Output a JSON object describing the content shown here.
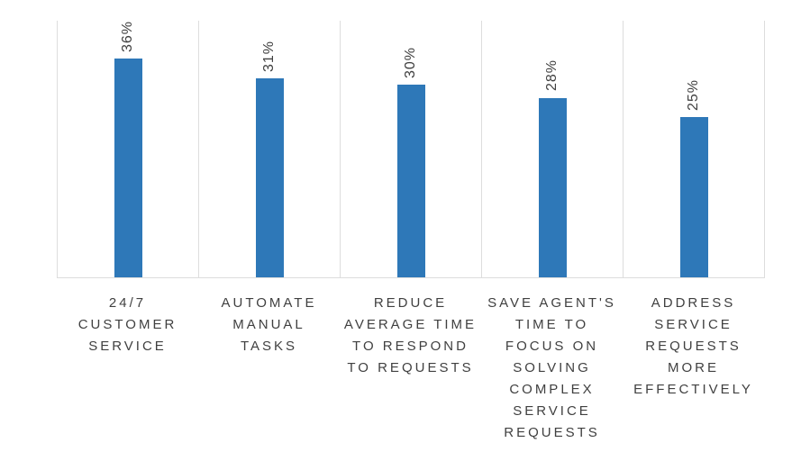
{
  "chart_data": {
    "type": "bar",
    "title": "",
    "xlabel": "",
    "ylabel": "",
    "categories": [
      "24/7 CUSTOMER SERVICE",
      "AUTOMATE MANUAL TASKS",
      "REDUCE AVERAGE TIME TO RESPOND TO REQUESTS",
      "SAVE AGENT'S TIME TO FOCUS ON SOLVING COMPLEX SERVICE REQUESTS",
      "ADDRESS SERVICE REQUESTS MORE EFFECTIVELY"
    ],
    "category_lines": [
      [
        "24/7",
        "CUSTOMER",
        "SERVICE"
      ],
      [
        "AUTOMATE",
        "MANUAL",
        "TASKS"
      ],
      [
        "REDUCE",
        "AVERAGE TIME",
        "TO RESPOND",
        "TO REQUESTS"
      ],
      [
        "SAVE AGENT'S",
        "TIME TO",
        "FOCUS ON",
        "SOLVING",
        "COMPLEX",
        "SERVICE",
        "REQUESTS"
      ],
      [
        "ADDRESS",
        "SERVICE",
        "REQUESTS",
        "MORE",
        "EFFECTIVELY"
      ]
    ],
    "values": [
      36,
      31,
      30,
      28,
      25
    ],
    "data_labels": [
      "36%",
      "31%",
      "30%",
      "28%",
      "25%"
    ],
    "data_label_rotation_deg": 90,
    "ylim": [
      0,
      40
    ],
    "y_axis_visible": false,
    "grid": "vertical category separators only",
    "legend": "none",
    "colors": {
      "bar": "#2e78b8",
      "axis_line": "#dddddd",
      "label_text": "#404040",
      "background": "#ffffff"
    }
  }
}
